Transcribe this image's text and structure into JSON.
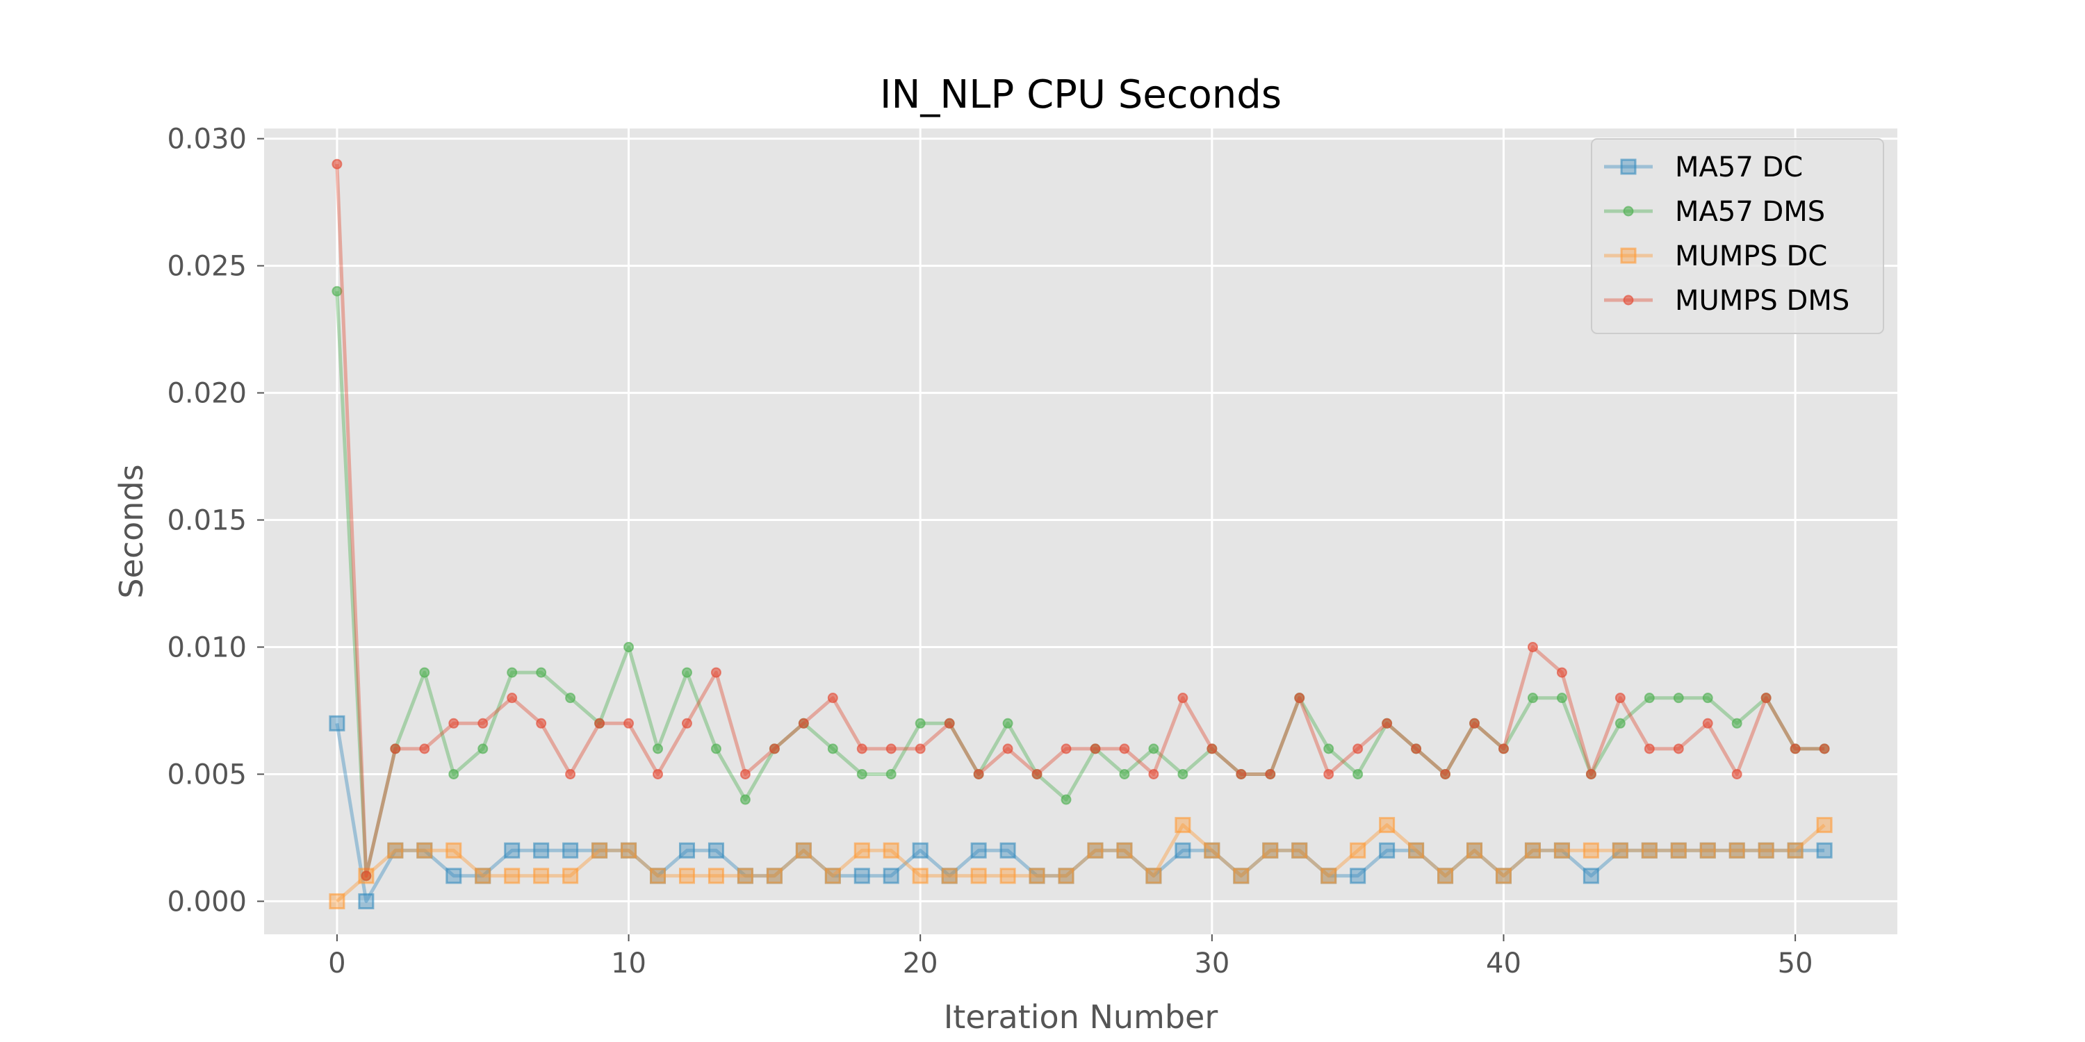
{
  "chart_data": {
    "type": "line",
    "title": "IN_NLP CPU Seconds",
    "xlabel": "Iteration Number",
    "ylabel": "Seconds",
    "xlim": [
      -2.5,
      53.5
    ],
    "ylim": [
      -0.0013,
      0.0304
    ],
    "xticks": [
      0,
      10,
      20,
      30,
      40,
      50
    ],
    "yticks": [
      0.0,
      0.005,
      0.01,
      0.015,
      0.02,
      0.025,
      0.03
    ],
    "ytick_labels": [
      "0.000",
      "0.005",
      "0.010",
      "0.015",
      "0.020",
      "0.025",
      "0.030"
    ],
    "grid": true,
    "legend_position": "top-right",
    "x": [
      0,
      1,
      2,
      3,
      4,
      5,
      6,
      7,
      8,
      9,
      10,
      11,
      12,
      13,
      14,
      15,
      16,
      17,
      18,
      19,
      20,
      21,
      22,
      23,
      24,
      25,
      26,
      27,
      28,
      29,
      30,
      31,
      32,
      33,
      34,
      35,
      36,
      37,
      38,
      39,
      40,
      41,
      42,
      43,
      44,
      45,
      46,
      47,
      48,
      49,
      50,
      51
    ],
    "series": [
      {
        "name": "MA57 DC",
        "color": "#348ABD",
        "marker": "square",
        "values": [
          0.007,
          0.0,
          0.002,
          0.002,
          0.001,
          0.001,
          0.002,
          0.002,
          0.002,
          0.002,
          0.002,
          0.001,
          0.002,
          0.002,
          0.001,
          0.001,
          0.002,
          0.001,
          0.001,
          0.001,
          0.002,
          0.001,
          0.002,
          0.002,
          0.001,
          0.001,
          0.002,
          0.002,
          0.001,
          0.002,
          0.002,
          0.001,
          0.002,
          0.002,
          0.001,
          0.001,
          0.002,
          0.002,
          0.001,
          0.002,
          0.001,
          0.002,
          0.002,
          0.001,
          0.002,
          0.002,
          0.002,
          0.002,
          0.002,
          0.002,
          0.002,
          0.002
        ]
      },
      {
        "name": "MA57 DMS",
        "color": "#4CAF50",
        "marker": "circle",
        "values": [
          0.024,
          0.001,
          0.006,
          0.009,
          0.005,
          0.006,
          0.009,
          0.009,
          0.008,
          0.007,
          0.01,
          0.006,
          0.009,
          0.006,
          0.004,
          0.006,
          0.007,
          0.006,
          0.005,
          0.005,
          0.007,
          0.007,
          0.005,
          0.007,
          0.005,
          0.004,
          0.006,
          0.005,
          0.006,
          0.005,
          0.006,
          0.005,
          0.005,
          0.008,
          0.006,
          0.005,
          0.007,
          0.006,
          0.005,
          0.007,
          0.006,
          0.008,
          0.008,
          0.005,
          0.007,
          0.008,
          0.008,
          0.008,
          0.007,
          0.008,
          0.006,
          0.006
        ]
      },
      {
        "name": "MUMPS DC",
        "color": "#FF9933",
        "marker": "square",
        "values": [
          0.0,
          0.001,
          0.002,
          0.002,
          0.002,
          0.001,
          0.001,
          0.001,
          0.001,
          0.002,
          0.002,
          0.001,
          0.001,
          0.001,
          0.001,
          0.001,
          0.002,
          0.001,
          0.002,
          0.002,
          0.001,
          0.001,
          0.001,
          0.001,
          0.001,
          0.001,
          0.002,
          0.002,
          0.001,
          0.003,
          0.002,
          0.001,
          0.002,
          0.002,
          0.001,
          0.002,
          0.003,
          0.002,
          0.001,
          0.002,
          0.001,
          0.002,
          0.002,
          0.002,
          0.002,
          0.002,
          0.002,
          0.002,
          0.002,
          0.002,
          0.002,
          0.003
        ]
      },
      {
        "name": "MUMPS DMS",
        "color": "#E24A33",
        "marker": "circle",
        "values": [
          0.029,
          0.001,
          0.006,
          0.006,
          0.007,
          0.007,
          0.008,
          0.007,
          0.005,
          0.007,
          0.007,
          0.005,
          0.007,
          0.009,
          0.005,
          0.006,
          0.007,
          0.008,
          0.006,
          0.006,
          0.006,
          0.007,
          0.005,
          0.006,
          0.005,
          0.006,
          0.006,
          0.006,
          0.005,
          0.008,
          0.006,
          0.005,
          0.005,
          0.008,
          0.005,
          0.006,
          0.007,
          0.006,
          0.005,
          0.007,
          0.006,
          0.01,
          0.009,
          0.005,
          0.008,
          0.006,
          0.006,
          0.007,
          0.005,
          0.008,
          0.006,
          0.006
        ]
      }
    ]
  }
}
